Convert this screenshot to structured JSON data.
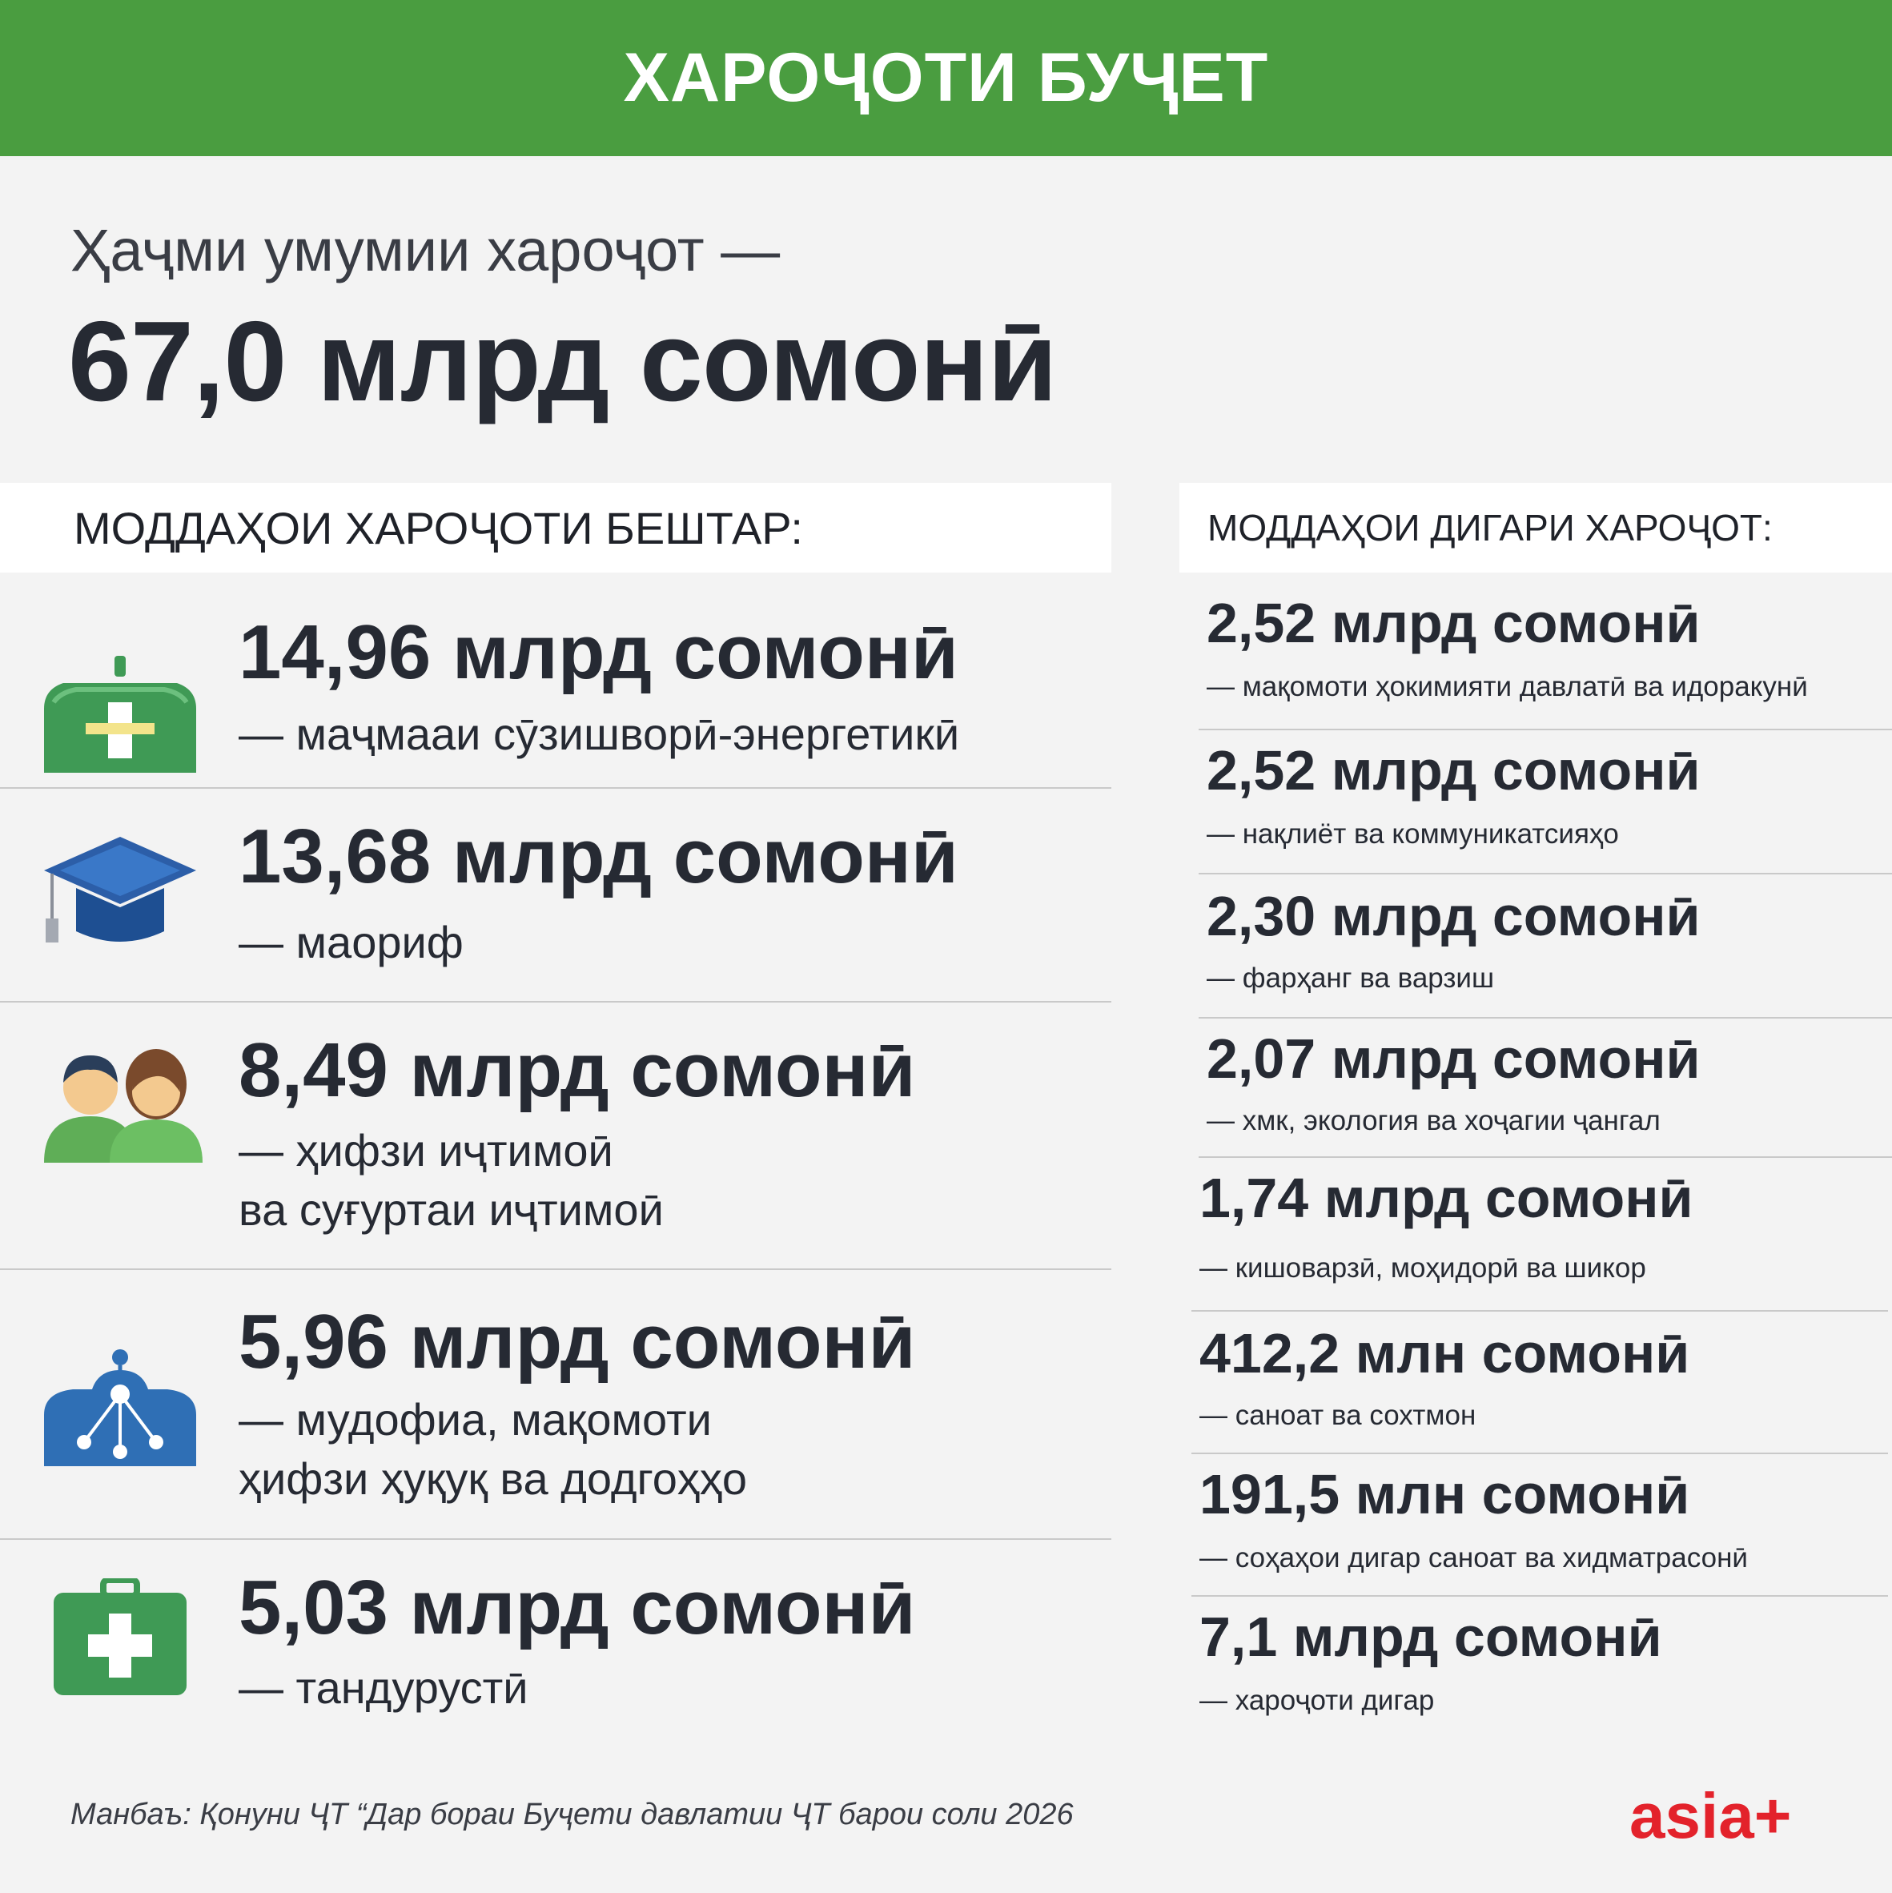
{
  "header": {
    "title": "ХАРОҶОТИ БУҶЕТ"
  },
  "total": {
    "label": "Ҳаҷми умумии хароҷот —",
    "value": "67,0 млрд сомонӣ"
  },
  "main_section": {
    "heading": "МОДДАҲОИ ХАРОҶОТИ БЕШТАР:",
    "items": [
      {
        "icon": "energy-case-icon",
        "value": "14,96 млрд сомонӣ",
        "desc_line1": "— маҷмааи сӯзишворӣ-энергетикӣ",
        "desc_line2": ""
      },
      {
        "icon": "graduation-cap-icon",
        "value": "13,68 млрд сомонӣ",
        "desc_line1": "— маориф",
        "desc_line2": ""
      },
      {
        "icon": "people-icon",
        "value": "8,49 млрд сомонӣ",
        "desc_line1": "— ҳифзи иҷтимоӣ",
        "desc_line2": "ва суғуртаи иҷтимоӣ"
      },
      {
        "icon": "network-icon",
        "value": "5,96 млрд сомонӣ",
        "desc_line1": "— мудофиа, мақомоти",
        "desc_line2": "ҳифзи ҳуқуқ ва додгоҳҳо"
      },
      {
        "icon": "first-aid-kit-icon",
        "value": "5,03 млрд сомонӣ",
        "desc_line1": "— тандурустӣ",
        "desc_line2": ""
      }
    ]
  },
  "other_section": {
    "heading": "МОДДАҲОИ ДИГАРИ ХАРОҶОТ:",
    "items": [
      {
        "value": "2,52 млрд сомонӣ",
        "desc": "— мақомоти ҳокимияти давлатӣ ва идоракунӣ"
      },
      {
        "value": "2,52 млрд сомонӣ",
        "desc": "— нақлиёт ва коммуникатсияҳо"
      },
      {
        "value": "2,30 млрд сомонӣ",
        "desc": "— фарҳанг ва варзиш"
      },
      {
        "value": "2,07 млрд сомонӣ",
        "desc": "— хмк, экология ва хоҷагии ҷангал"
      },
      {
        "value": "1,74 млрд сомонӣ",
        "desc": "— кишоварзӣ, моҳидорӣ ва шикор"
      },
      {
        "value": "412,2 млн сомонӣ",
        "desc": "— саноат ва сохтмон"
      },
      {
        "value": "191,5 млн сомонӣ",
        "desc": "— соҳаҳои дигар саноат ва хидматрасонӣ"
      },
      {
        "value": "7,1 млрд сомонӣ",
        "desc": "— хароҷоти дигар"
      }
    ]
  },
  "footer": {
    "source": "Манбаъ: Қонуни ҶТ “Дар бораи Буҷети давлатии ҶТ барои соли 2026",
    "brand": "asia+"
  },
  "colors": {
    "header_green": "#4a9d40",
    "brand_red": "#e3222b",
    "icon_green": "#3f9a55",
    "icon_blue": "#2f6fb5"
  }
}
